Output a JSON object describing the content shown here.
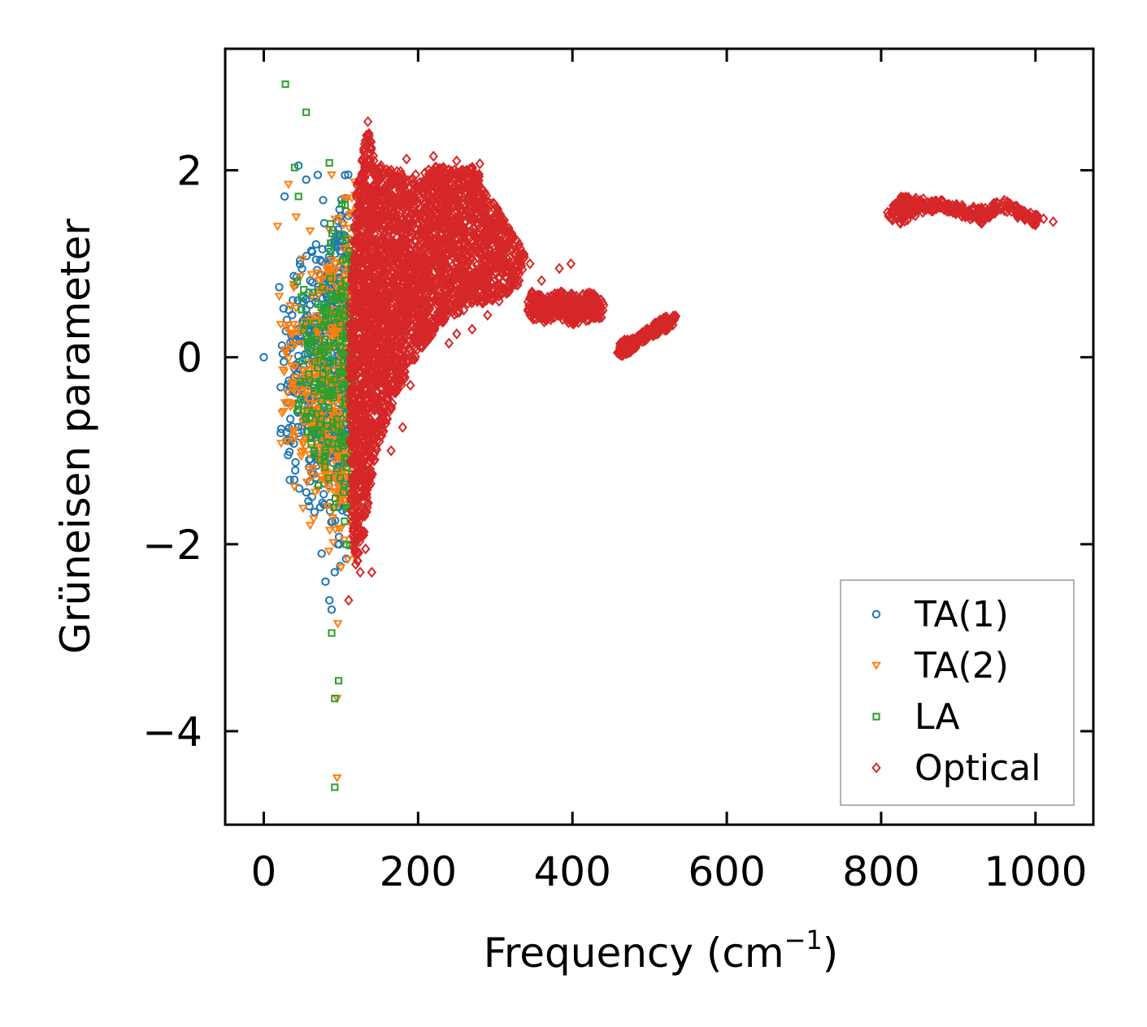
{
  "chart_data": {
    "type": "scatter",
    "title": "",
    "xlabel": "Frequency (cm",
    "xlabel_sup": "−1",
    "xlabel_tail": ")",
    "ylabel": "Grüneisen parameter",
    "xlim": [
      -50,
      1075
    ],
    "ylim": [
      -5.0,
      3.3
    ],
    "xticks": [
      0,
      200,
      400,
      600,
      800,
      1000
    ],
    "xtick_labels": [
      "0",
      "200",
      "400",
      "600",
      "800",
      "1000"
    ],
    "yticks": [
      -4,
      -2,
      0,
      2
    ],
    "ytick_labels": [
      "−4",
      "−2",
      "0",
      "2"
    ],
    "grid": false,
    "legend_position": "bottom-right",
    "series": [
      {
        "name": "TA(1)",
        "marker": "circle",
        "color": "#1f77b4",
        "region": {
          "x_range": [
            20,
            110
          ],
          "y_range": [
            -2.75,
            2.05
          ],
          "count": 520
        },
        "points": [
          [
            0,
            0.0
          ],
          [
            20,
            0.75
          ],
          [
            22,
            -0.32
          ],
          [
            27,
            1.72
          ],
          [
            30,
            0.4
          ],
          [
            35,
            0.1
          ],
          [
            38,
            -0.36
          ],
          [
            45,
            2.05
          ],
          [
            50,
            -0.42
          ],
          [
            55,
            1.9
          ],
          [
            62,
            -0.78
          ],
          [
            70,
            1.95
          ],
          [
            75,
            -2.1
          ],
          [
            80,
            -2.4
          ],
          [
            85,
            -2.6
          ],
          [
            88,
            -2.7
          ],
          [
            92,
            -2.3
          ],
          [
            96,
            -2.0
          ]
        ]
      },
      {
        "name": "TA(2)",
        "marker": "triangle-down",
        "color": "#ff7f0e",
        "region": {
          "x_range": [
            20,
            120
          ],
          "y_range": [
            -3.0,
            1.9
          ],
          "count": 450
        },
        "points": [
          [
            18,
            1.4
          ],
          [
            20,
            0.65
          ],
          [
            22,
            0.35
          ],
          [
            32,
            1.85
          ],
          [
            42,
            1.5
          ],
          [
            50,
            1.05
          ],
          [
            60,
            1.35
          ],
          [
            88,
            1.95
          ],
          [
            95,
            -3.65
          ],
          [
            95,
            -4.5
          ],
          [
            96,
            -2.85
          ],
          [
            100,
            -2.25
          ],
          [
            105,
            1.7
          ]
        ]
      },
      {
        "name": "LA",
        "marker": "square",
        "color": "#2ca02c",
        "region": {
          "x_range": [
            40,
            118
          ],
          "y_range": [
            -2.6,
            1.9
          ],
          "count": 260
        },
        "points": [
          [
            28,
            2.92
          ],
          [
            55,
            2.62
          ],
          [
            40,
            2.03
          ],
          [
            45,
            1.72
          ],
          [
            85,
            2.08
          ],
          [
            62,
            -0.78
          ],
          [
            70,
            -0.8
          ],
          [
            65,
            -1.0
          ],
          [
            88,
            -2.95
          ],
          [
            92,
            -3.65
          ],
          [
            97,
            -3.46
          ],
          [
            92,
            -4.6
          ],
          [
            110,
            1.05
          ],
          [
            115,
            0.95
          ]
        ]
      },
      {
        "name": "Optical",
        "marker": "diamond",
        "color": "#d62728",
        "clusters": [
          {
            "polygon": [
              [
                110,
                0.4
              ],
              [
                120,
                1.8
              ],
              [
                135,
                2.5
              ],
              [
                145,
                2.05
              ],
              [
                170,
                2.0
              ],
              [
                200,
                1.95
              ],
              [
                225,
                2.05
              ],
              [
                255,
                2.0
              ],
              [
                275,
                2.05
              ],
              [
                290,
                1.7
              ],
              [
                305,
                1.6
              ],
              [
                320,
                1.35
              ],
              [
                340,
                1.1
              ],
              [
                330,
                0.75
              ],
              [
                300,
                0.6
              ],
              [
                270,
                0.55
              ],
              [
                235,
                0.4
              ],
              [
                200,
                0.05
              ],
              [
                170,
                -0.45
              ],
              [
                145,
                -1.05
              ],
              [
                135,
                -1.6
              ],
              [
                128,
                -2.0
              ],
              [
                118,
                -2.3
              ],
              [
                112,
                -1.5
              ]
            ],
            "count": 3200
          },
          {
            "polygon": [
              [
                340,
                0.55
              ],
              [
                348,
                0.72
              ],
              [
                365,
                0.63
              ],
              [
                385,
                0.72
              ],
              [
                405,
                0.66
              ],
              [
                425,
                0.7
              ],
              [
                443,
                0.58
              ],
              [
                438,
                0.42
              ],
              [
                420,
                0.38
              ],
              [
                400,
                0.35
              ],
              [
                380,
                0.42
              ],
              [
                360,
                0.36
              ],
              [
                345,
                0.42
              ]
            ],
            "count": 320
          },
          {
            "polygon": [
              [
                458,
                0.05
              ],
              [
                462,
                0.18
              ],
              [
                480,
                0.2
              ],
              [
                500,
                0.33
              ],
              [
                520,
                0.45
              ],
              [
                535,
                0.45
              ],
              [
                530,
                0.32
              ],
              [
                510,
                0.25
              ],
              [
                490,
                0.16
              ],
              [
                475,
                0.05
              ],
              [
                462,
                0.0
              ]
            ],
            "count": 240
          },
          {
            "polygon": [
              [
                808,
                1.55
              ],
              [
                825,
                1.72
              ],
              [
                850,
                1.7
              ],
              [
                880,
                1.68
              ],
              [
                910,
                1.62
              ],
              [
                935,
                1.6
              ],
              [
                955,
                1.7
              ],
              [
                985,
                1.58
              ],
              [
                1000,
                1.53
              ],
              [
                1015,
                1.47
              ],
              [
                1000,
                1.4
              ],
              [
                975,
                1.5
              ],
              [
                955,
                1.58
              ],
              [
                930,
                1.43
              ],
              [
                900,
                1.52
              ],
              [
                875,
                1.58
              ],
              [
                850,
                1.52
              ],
              [
                825,
                1.43
              ],
              [
                810,
                1.48
              ]
            ],
            "count": 320
          }
        ],
        "points": [
          [
            135,
            2.52
          ],
          [
            152,
            2.05
          ],
          [
            185,
            2.12
          ],
          [
            220,
            2.15
          ],
          [
            250,
            2.1
          ],
          [
            280,
            2.07
          ],
          [
            330,
            0.92
          ],
          [
            345,
            1.0
          ],
          [
            360,
            0.82
          ],
          [
            383,
            0.95
          ],
          [
            398,
            1.0
          ],
          [
            305,
            0.6
          ],
          [
            290,
            0.45
          ],
          [
            270,
            0.3
          ],
          [
            250,
            0.25
          ],
          [
            240,
            0.15
          ],
          [
            190,
            -0.3
          ],
          [
            180,
            -0.75
          ],
          [
            165,
            -1.0
          ],
          [
            150,
            -0.9
          ],
          [
            125,
            -2.3
          ],
          [
            140,
            -2.3
          ],
          [
            110,
            -2.6
          ],
          [
            1023,
            1.45
          ],
          [
            132,
            -2.05
          ]
        ]
      }
    ]
  }
}
